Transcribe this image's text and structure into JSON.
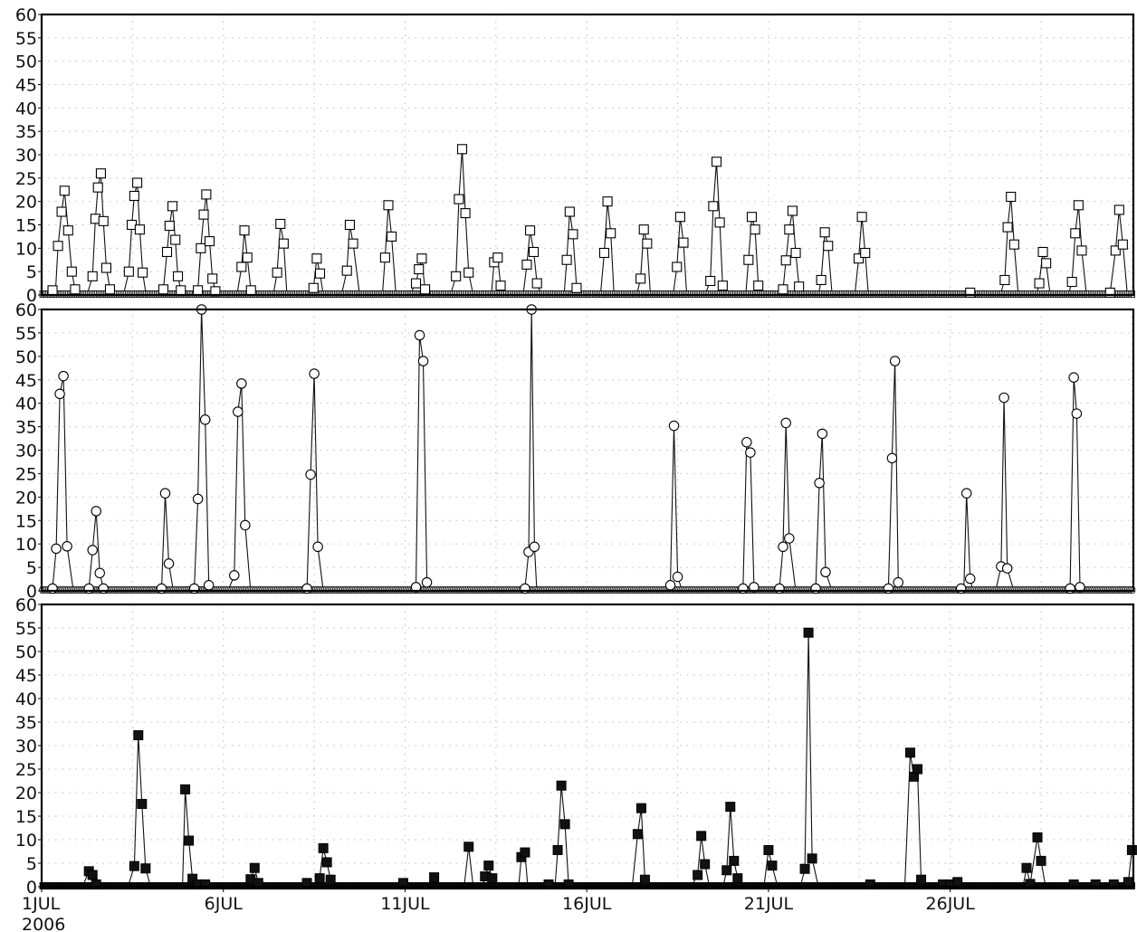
{
  "chart_data": {
    "type": "line",
    "start_label_year": "2006",
    "x_ticks": [
      {
        "day": 1,
        "label": "1JUL"
      },
      {
        "day": 6,
        "label": "6JUL"
      },
      {
        "day": 11,
        "label": "11JUL"
      },
      {
        "day": 16,
        "label": "16JUL"
      },
      {
        "day": 21,
        "label": "21JUL"
      },
      {
        "day": 26,
        "label": "26JUL"
      }
    ],
    "xlim_days": [
      1,
      31.04
    ],
    "ylim": [
      0,
      60
    ],
    "y_ticks": [
      "0",
      "5",
      "10",
      "15",
      "20",
      "25",
      "30",
      "35",
      "40",
      "45",
      "50",
      "55",
      "60"
    ],
    "grid": true,
    "panels": [
      {
        "marker": "open-square",
        "peaks": [
          [
            1.3,
            1.0
          ],
          [
            1.45,
            10.5
          ],
          [
            1.55,
            17.8
          ],
          [
            1.63,
            22.3
          ],
          [
            1.73,
            13.8
          ],
          [
            1.83,
            5.0
          ],
          [
            1.92,
            1.2
          ],
          [
            2.4,
            4.0
          ],
          [
            2.48,
            16.3
          ],
          [
            2.55,
            23.0
          ],
          [
            2.63,
            26.0
          ],
          [
            2.7,
            15.8
          ],
          [
            2.78,
            5.8
          ],
          [
            2.88,
            1.2
          ],
          [
            3.4,
            5.0
          ],
          [
            3.48,
            15.0
          ],
          [
            3.55,
            21.2
          ],
          [
            3.63,
            24.0
          ],
          [
            3.7,
            14.0
          ],
          [
            3.78,
            4.8
          ],
          [
            4.35,
            1.2
          ],
          [
            4.45,
            9.2
          ],
          [
            4.52,
            14.8
          ],
          [
            4.6,
            19.0
          ],
          [
            4.68,
            11.8
          ],
          [
            4.75,
            4.0
          ],
          [
            4.83,
            1.0
          ],
          [
            5.3,
            1.0
          ],
          [
            5.38,
            10.0
          ],
          [
            5.46,
            17.2
          ],
          [
            5.53,
            21.5
          ],
          [
            5.62,
            11.5
          ],
          [
            5.7,
            3.5
          ],
          [
            5.78,
            0.8
          ],
          [
            6.5,
            6.0
          ],
          [
            6.58,
            13.8
          ],
          [
            6.66,
            8.0
          ],
          [
            6.76,
            1.0
          ],
          [
            7.48,
            4.8
          ],
          [
            7.57,
            15.2
          ],
          [
            7.66,
            11.0
          ],
          [
            8.48,
            1.5
          ],
          [
            8.57,
            7.8
          ],
          [
            8.66,
            4.6
          ],
          [
            9.4,
            5.2
          ],
          [
            9.48,
            15.0
          ],
          [
            9.57,
            11.0
          ],
          [
            10.45,
            8.0
          ],
          [
            10.54,
            19.2
          ],
          [
            10.63,
            12.5
          ],
          [
            11.3,
            2.5
          ],
          [
            11.38,
            5.5
          ],
          [
            11.46,
            7.8
          ],
          [
            11.55,
            1.2
          ],
          [
            12.4,
            4.0
          ],
          [
            12.48,
            20.5
          ],
          [
            12.57,
            31.2
          ],
          [
            12.66,
            17.5
          ],
          [
            12.75,
            4.8
          ],
          [
            13.45,
            7.0
          ],
          [
            13.55,
            8.0
          ],
          [
            13.63,
            2.0
          ],
          [
            14.35,
            6.5
          ],
          [
            14.44,
            13.8
          ],
          [
            14.54,
            9.2
          ],
          [
            14.63,
            2.5
          ],
          [
            15.45,
            7.5
          ],
          [
            15.53,
            17.8
          ],
          [
            15.62,
            13.0
          ],
          [
            15.72,
            1.5
          ],
          [
            16.48,
            9.0
          ],
          [
            16.57,
            20.0
          ],
          [
            16.66,
            13.2
          ],
          [
            17.48,
            3.5
          ],
          [
            17.57,
            14.0
          ],
          [
            17.66,
            11.0
          ],
          [
            18.48,
            6.0
          ],
          [
            18.57,
            16.7
          ],
          [
            18.66,
            11.2
          ],
          [
            19.4,
            3.0
          ],
          [
            19.48,
            19.0
          ],
          [
            19.57,
            28.5
          ],
          [
            19.66,
            15.5
          ],
          [
            19.74,
            2.0
          ],
          [
            20.45,
            7.5
          ],
          [
            20.54,
            16.7
          ],
          [
            20.63,
            14.0
          ],
          [
            20.72,
            2.0
          ],
          [
            21.4,
            1.2
          ],
          [
            21.48,
            7.4
          ],
          [
            21.57,
            14.0
          ],
          [
            21.66,
            18.0
          ],
          [
            21.75,
            9.0
          ],
          [
            21.84,
            1.8
          ],
          [
            22.45,
            3.2
          ],
          [
            22.55,
            13.4
          ],
          [
            22.64,
            10.5
          ],
          [
            23.48,
            7.8
          ],
          [
            23.57,
            16.7
          ],
          [
            23.66,
            9.0
          ],
          [
            26.55,
            0.5
          ],
          [
            27.5,
            3.2
          ],
          [
            27.58,
            14.5
          ],
          [
            27.67,
            21.0
          ],
          [
            27.76,
            10.8
          ],
          [
            28.45,
            2.5
          ],
          [
            28.55,
            9.2
          ],
          [
            28.64,
            6.8
          ],
          [
            29.35,
            2.8
          ],
          [
            29.44,
            13.2
          ],
          [
            29.53,
            19.2
          ],
          [
            29.62,
            9.5
          ],
          [
            30.4,
            0.5
          ],
          [
            30.55,
            9.5
          ],
          [
            30.65,
            18.2
          ],
          [
            30.75,
            10.8
          ]
        ],
        "dense_zero_markers": true
      },
      {
        "marker": "open-circle",
        "peaks": [
          [
            1.3,
            0.5
          ],
          [
            1.4,
            9.0
          ],
          [
            1.5,
            42.0
          ],
          [
            1.6,
            45.8
          ],
          [
            1.7,
            9.5
          ],
          [
            2.3,
            0.5
          ],
          [
            2.4,
            8.7
          ],
          [
            2.5,
            17.0
          ],
          [
            2.6,
            3.8
          ],
          [
            2.7,
            0.5
          ],
          [
            4.3,
            0.5
          ],
          [
            4.4,
            20.8
          ],
          [
            4.5,
            5.8
          ],
          [
            5.2,
            0.5
          ],
          [
            5.3,
            19.6
          ],
          [
            5.4,
            60.0
          ],
          [
            5.5,
            36.5
          ],
          [
            5.6,
            1.2
          ],
          [
            6.3,
            3.3
          ],
          [
            6.4,
            38.2
          ],
          [
            6.5,
            44.2
          ],
          [
            6.6,
            14.0
          ],
          [
            8.3,
            0.5
          ],
          [
            8.4,
            24.8
          ],
          [
            8.5,
            46.3
          ],
          [
            8.6,
            9.4
          ],
          [
            11.3,
            0.8
          ],
          [
            11.4,
            54.5
          ],
          [
            11.5,
            49.0
          ],
          [
            11.6,
            1.8
          ],
          [
            14.3,
            0.5
          ],
          [
            14.4,
            8.3
          ],
          [
            14.48,
            60.0
          ],
          [
            14.56,
            9.4
          ],
          [
            18.3,
            1.2
          ],
          [
            18.4,
            35.2
          ],
          [
            18.5,
            3.0
          ],
          [
            20.3,
            0.5
          ],
          [
            20.4,
            31.7
          ],
          [
            20.5,
            29.5
          ],
          [
            20.6,
            0.8
          ],
          [
            21.3,
            0.5
          ],
          [
            21.4,
            9.4
          ],
          [
            21.48,
            35.8
          ],
          [
            21.57,
            11.2
          ],
          [
            22.3,
            0.5
          ],
          [
            22.4,
            23.0
          ],
          [
            22.48,
            33.5
          ],
          [
            22.57,
            4.0
          ],
          [
            24.3,
            0.5
          ],
          [
            24.4,
            28.3
          ],
          [
            24.48,
            49.0
          ],
          [
            24.57,
            1.8
          ],
          [
            26.3,
            0.5
          ],
          [
            26.45,
            20.8
          ],
          [
            26.55,
            2.6
          ],
          [
            27.4,
            5.2
          ],
          [
            27.48,
            41.2
          ],
          [
            27.57,
            4.8
          ],
          [
            29.3,
            0.5
          ],
          [
            29.4,
            45.5
          ],
          [
            29.48,
            37.8
          ],
          [
            29.57,
            0.8
          ]
        ],
        "dense_zero_markers": true
      },
      {
        "marker": "filled-square",
        "peaks": [
          [
            2.3,
            3.3
          ],
          [
            2.4,
            2.5
          ],
          [
            2.5,
            0.5
          ],
          [
            3.55,
            4.4
          ],
          [
            3.66,
            32.2
          ],
          [
            3.76,
            17.6
          ],
          [
            3.86,
            3.9
          ],
          [
            4.95,
            20.7
          ],
          [
            5.05,
            9.8
          ],
          [
            5.15,
            1.7
          ],
          [
            5.3,
            0.5
          ],
          [
            5.5,
            0.5
          ],
          [
            6.75,
            1.6
          ],
          [
            6.86,
            4.0
          ],
          [
            6.96,
            0.8
          ],
          [
            8.3,
            0.8
          ],
          [
            8.65,
            1.8
          ],
          [
            8.75,
            8.2
          ],
          [
            8.85,
            5.2
          ],
          [
            8.95,
            1.5
          ],
          [
            10.95,
            0.8
          ],
          [
            11.8,
            2.0
          ],
          [
            12.75,
            8.5
          ],
          [
            13.2,
            2.2
          ],
          [
            13.3,
            4.5
          ],
          [
            13.4,
            1.8
          ],
          [
            14.2,
            6.3
          ],
          [
            14.3,
            7.3
          ],
          [
            14.95,
            0.5
          ],
          [
            15.2,
            7.8
          ],
          [
            15.3,
            21.5
          ],
          [
            15.4,
            13.3
          ],
          [
            15.5,
            0.5
          ],
          [
            17.4,
            11.2
          ],
          [
            17.5,
            16.7
          ],
          [
            17.6,
            1.5
          ],
          [
            19.05,
            2.5
          ],
          [
            19.15,
            10.8
          ],
          [
            19.25,
            4.8
          ],
          [
            19.85,
            3.5
          ],
          [
            19.95,
            17.0
          ],
          [
            20.05,
            5.5
          ],
          [
            20.15,
            1.8
          ],
          [
            21.0,
            7.8
          ],
          [
            21.1,
            4.5
          ],
          [
            22.0,
            3.8
          ],
          [
            22.1,
            54.0
          ],
          [
            22.2,
            6.0
          ],
          [
            23.8,
            0.5
          ],
          [
            24.9,
            28.5
          ],
          [
            25.0,
            23.4
          ],
          [
            25.1,
            25.0
          ],
          [
            25.2,
            1.5
          ],
          [
            25.8,
            0.5
          ],
          [
            26.0,
            0.5
          ],
          [
            26.2,
            1.0
          ],
          [
            28.1,
            4.0
          ],
          [
            28.2,
            0.6
          ],
          [
            28.4,
            10.5
          ],
          [
            28.5,
            5.5
          ],
          [
            29.4,
            0.5
          ],
          [
            30.0,
            0.5
          ],
          [
            30.5,
            0.5
          ],
          [
            30.9,
            1.0
          ],
          [
            31.0,
            7.8
          ]
        ],
        "dense_zero_markers": true
      }
    ]
  }
}
